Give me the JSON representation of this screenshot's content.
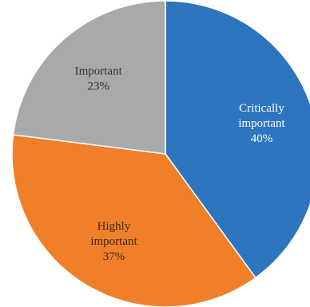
{
  "chart_data": {
    "type": "pie",
    "start_angle_deg": 0,
    "direction": "clockwise",
    "slices": [
      {
        "label_lines": [
          "Critically",
          "important"
        ],
        "percent_label": "40%",
        "value": 40,
        "color": "#2E75C0",
        "label_color": "#ffffff"
      },
      {
        "label_lines": [
          "Highly",
          "important"
        ],
        "percent_label": "37%",
        "value": 37,
        "color": "#F07F2A",
        "label_color": "#3a2a10"
      },
      {
        "label_lines": [
          "Important"
        ],
        "percent_label": "23%",
        "value": 23,
        "color": "#A9A9A9",
        "label_color": "#333333"
      }
    ]
  }
}
